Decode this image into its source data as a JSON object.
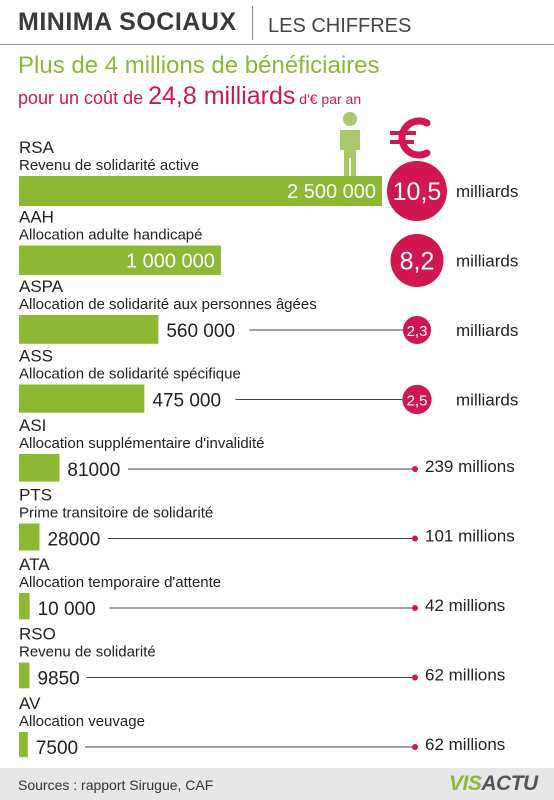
{
  "header": {
    "title": "MINIMA SOCIAUX",
    "section": "LES CHIFFRES"
  },
  "headline": {
    "line1": "Plus de 4 millions de bénéficiaires",
    "line2_pre": "pour un coût de ",
    "line2_amount": "24,8 milliards",
    "line2_post": " d'€ par an"
  },
  "colors": {
    "bar": "#8cb833",
    "cost_circle": "#d0174f",
    "connector": "#444444",
    "icon": "#a8c86a",
    "euro": "#d0174f"
  },
  "icons": [
    "person-icon",
    "euro-icon"
  ],
  "chart_data": {
    "type": "bar",
    "orientation": "horizontal",
    "series": [
      {
        "values": [
          2500000,
          1000000,
          560000,
          475000,
          81000,
          28000,
          10000,
          9850,
          7500
        ]
      }
    ],
    "items": [
      {
        "code": "RSA",
        "name": "Revenu de solidarité active",
        "count_label": "2 500 000",
        "count": 2500000,
        "cost_label": "10,5",
        "cost_unit": "milliards",
        "cost_in_circle": true,
        "cost_millions": 10500
      },
      {
        "code": "AAH",
        "name": "Allocation adulte handicapé",
        "count_label": "1 000 000",
        "count": 1000000,
        "cost_label": "8,2",
        "cost_unit": "milliards",
        "cost_in_circle": true,
        "cost_millions": 8200
      },
      {
        "code": "ASPA",
        "name": "Allocation de solidarité aux personnes âgées",
        "count_label": "560 000",
        "count": 560000,
        "cost_label": "2,3",
        "cost_unit": "milliards",
        "cost_in_circle": true,
        "cost_millions": 2300
      },
      {
        "code": "ASS",
        "name": "Allocation de solidarité spécifique",
        "count_label": "475 000",
        "count": 475000,
        "cost_label": "2,5",
        "cost_unit": "milliards",
        "cost_in_circle": true,
        "cost_millions": 2500
      },
      {
        "code": "ASI",
        "name": "Allocation supplémentaire d'invalidité",
        "count_label": "81000",
        "count": 81000,
        "cost_label": "239 millions",
        "cost_unit": "",
        "cost_in_circle": false,
        "cost_millions": 239
      },
      {
        "code": "PTS",
        "name": "Prime transitoire de solidarité",
        "count_label": "28000",
        "count": 28000,
        "cost_label": "101 millions",
        "cost_unit": "",
        "cost_in_circle": false,
        "cost_millions": 101
      },
      {
        "code": "ATA",
        "name": "Allocation temporaire d'attente",
        "count_label": "10 000",
        "count": 10000,
        "cost_label": "42 millions",
        "cost_unit": "",
        "cost_in_circle": false,
        "cost_millions": 42
      },
      {
        "code": "RSO",
        "name": "Revenu de solidarité",
        "count_label": "9850",
        "count": 9850,
        "cost_label": "62 millions",
        "cost_unit": "",
        "cost_in_circle": false,
        "cost_millions": 62
      },
      {
        "code": "AV",
        "name": "Allocation veuvage",
        "count_label": "7500",
        "count": 7500,
        "cost_label": "62 millions",
        "cost_unit": "",
        "cost_in_circle": false,
        "cost_millions": 62
      }
    ]
  },
  "footer": {
    "source": "Sources : rapport Sirugue, CAF",
    "logo_vis": "VIS",
    "logo_actu": "ACTU"
  }
}
